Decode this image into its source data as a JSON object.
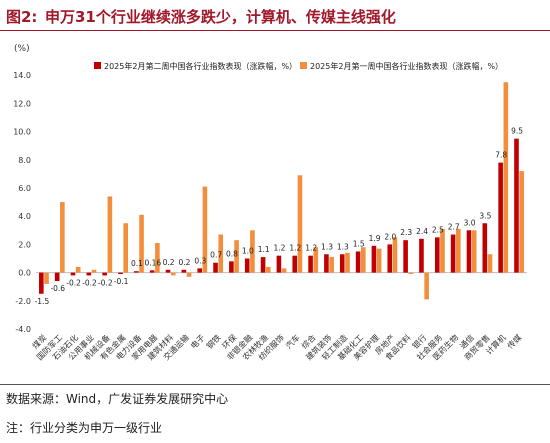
{
  "figure": {
    "label": "图2:",
    "title": "申万31个行业继续涨多跌少，计算机、传媒主线强化"
  },
  "chart_data": {
    "type": "bar",
    "unit_label": "(%)",
    "ylim": [
      -4.0,
      16.0
    ],
    "yticks": [
      "16.0",
      "14.0",
      "12.0",
      "10.0",
      "8.0",
      "6.0",
      "4.0",
      "2.0",
      "0.0",
      "-2.0",
      "-4.0"
    ],
    "legend_position": "top-right",
    "categories": [
      "煤炭",
      "国防军工",
      "石油石化",
      "公用事业",
      "机械设备",
      "有色金属",
      "电力设备",
      "家用电器",
      "建筑材料",
      "交通运输",
      "电子",
      "钢铁",
      "环保",
      "非银金融",
      "农林牧渔",
      "纺织服饰",
      "汽车",
      "综合",
      "建筑装饰",
      "轻工制造",
      "基础化工",
      "美容护理",
      "房地产",
      "食品饮料",
      "银行",
      "社会服务",
      "医药生物",
      "通信",
      "商贸零售",
      "计算机",
      "传媒"
    ],
    "series": [
      {
        "name": "2025年2月第二周中国各行业指数表现（涨跌幅，%）",
        "color": "#c00000",
        "values": [
          -1.5,
          -0.6,
          -0.2,
          -0.2,
          -0.2,
          -0.1,
          0.1,
          0.16,
          0.2,
          0.2,
          0.3,
          0.7,
          0.8,
          1.0,
          1.1,
          1.2,
          1.2,
          1.2,
          1.3,
          1.3,
          1.5,
          1.9,
          2.0,
          2.3,
          2.4,
          2.5,
          2.7,
          3.0,
          3.5,
          7.8,
          9.5
        ],
        "labels": [
          "-1.5",
          "-0.6",
          "-0.2",
          "-0.2",
          "-0.2",
          "-0.1",
          "0.1",
          "0.16",
          "0.2",
          "0.2",
          "0.3",
          "0.7",
          "0.8",
          "1.0",
          "1.1",
          "1.2",
          "1.2",
          "1.2",
          "1.3",
          "1.3",
          "1.5",
          "1.9",
          "2.0",
          "2.3",
          "2.4",
          "2.5",
          "2.7",
          "3.0",
          "3.5",
          "7.8",
          "9.5"
        ]
      },
      {
        "name": "2025年2月第一周中国各行业指数表现（涨跌幅，%）",
        "color": "#f28e3c",
        "values": [
          -0.8,
          5.0,
          0.4,
          0.2,
          5.4,
          3.5,
          4.1,
          2.1,
          -0.2,
          -0.3,
          6.1,
          2.7,
          2.3,
          3.0,
          0.4,
          0.3,
          6.9,
          1.8,
          1.1,
          1.4,
          1.8,
          1.7,
          2.5,
          -0.1,
          -1.9,
          3.1,
          3.1,
          3.0,
          1.3,
          13.5,
          7.2
        ]
      }
    ]
  },
  "footer": {
    "source": "数据来源：Wind，广发证券发展研究中心",
    "note": "注：行业分类为申万一级行业"
  }
}
